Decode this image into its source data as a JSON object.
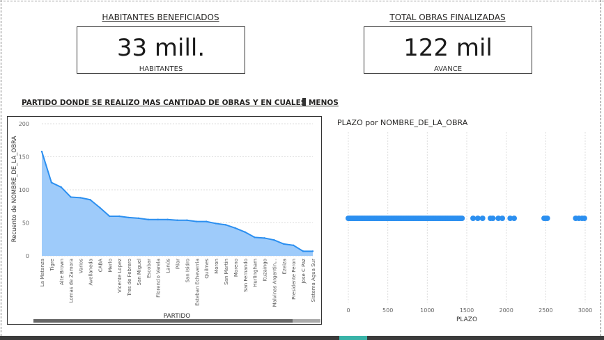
{
  "kpis": {
    "habitantes": {
      "title": "HABITANTES BENEFICIADOS",
      "value": "33 mill.",
      "subtitle": "HABITANTES"
    },
    "obras": {
      "title": "TOTAL OBRAS FINALIZADAS",
      "value": "122 mil",
      "subtitle": "AVANCE"
    }
  },
  "section_title": "PARTIDO DONDE SE REALIZO MAS CANTIDAD DE OBRAS Y EN CUALES MENOS",
  "colors": {
    "series": "#2b8ff0",
    "area_fill": "#9ecbfa",
    "gridline": "#dcdcdc"
  },
  "chart_data": [
    {
      "type": "area",
      "xlabel": "PARTIDO",
      "ylabel": "Recuento de NOMBRE_DE_LA_OBRA",
      "ylim": [
        0,
        200
      ],
      "yticks": [
        0,
        50,
        100,
        150,
        200
      ],
      "grid": true,
      "categories": [
        "La Matanza",
        "Tigre",
        "Alte Brown",
        "Lomas de Zamora",
        "Varios",
        "Avellaneda",
        "CABA",
        "Merlo",
        "Vicente Lopez",
        "Tres de Febrero",
        "San Miguel",
        "Escobar",
        "Florencio Varela",
        "Lanús",
        "Pilar",
        "San Isidro",
        "Esteban Echeverria",
        "Quilmes",
        "Moron",
        "San Martin",
        "Moreno",
        "San Fernando",
        "Hurlingham",
        "Ituzaingo",
        "Malvinas Argentin...",
        "Ezeiza",
        "Presidente Peron",
        "Jose C Paz",
        "Sistema Agua Sur"
      ],
      "values": [
        158,
        111,
        104,
        89,
        88,
        85,
        73,
        60,
        60,
        58,
        57,
        55,
        55,
        55,
        54,
        54,
        52,
        52,
        49,
        47,
        42,
        36,
        28,
        27,
        24,
        18,
        16,
        7,
        7
      ]
    },
    {
      "type": "scatter",
      "title": "PLAZO por NOMBRE_DE_LA_OBRA",
      "xlabel": "PLAZO",
      "xlim": [
        0,
        3000
      ],
      "xticks": [
        0,
        500,
        1000,
        1500,
        2000,
        2500,
        3000
      ],
      "grid": true,
      "x": [
        0,
        15,
        30,
        45,
        60,
        75,
        90,
        105,
        120,
        135,
        150,
        165,
        180,
        195,
        210,
        225,
        240,
        255,
        270,
        285,
        300,
        315,
        330,
        345,
        360,
        375,
        390,
        405,
        420,
        435,
        450,
        465,
        480,
        495,
        510,
        525,
        540,
        555,
        570,
        585,
        600,
        615,
        630,
        645,
        660,
        675,
        690,
        705,
        720,
        735,
        750,
        765,
        780,
        795,
        810,
        825,
        840,
        855,
        870,
        885,
        900,
        915,
        930,
        945,
        960,
        975,
        990,
        1005,
        1020,
        1035,
        1050,
        1065,
        1080,
        1095,
        1110,
        1125,
        1140,
        1155,
        1170,
        1185,
        1200,
        1215,
        1230,
        1245,
        1260,
        1275,
        1290,
        1305,
        1320,
        1335,
        1350,
        1365,
        1380,
        1395,
        1410,
        1425,
        1440,
        1580,
        1640,
        1700,
        1800,
        1830,
        1900,
        1950,
        2050,
        2100,
        2480,
        2500,
        2520,
        2880,
        2920,
        2960,
        2990
      ]
    }
  ]
}
